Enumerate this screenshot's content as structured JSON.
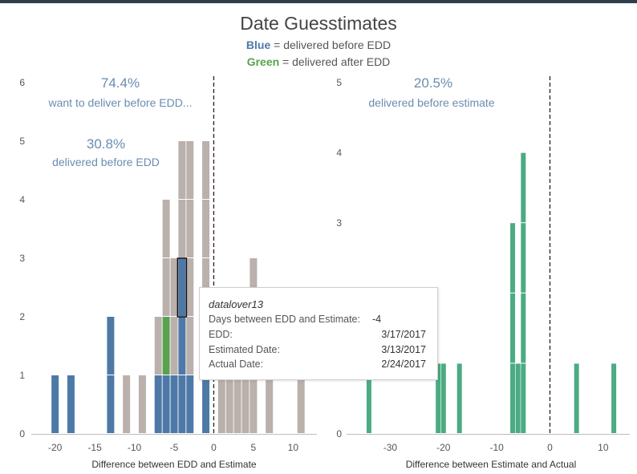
{
  "header": {
    "title": "Date Guesstimates",
    "legend_blue_word": "Blue",
    "legend_blue_rest": " = delivered before EDD",
    "legend_green_word": "Green",
    "legend_green_rest": " = delivered after EDD"
  },
  "colors": {
    "blue": "#4e79a7",
    "green": "#59a14f",
    "gray": "#bab0ac",
    "teal": "#4bab82",
    "annotation": "#6a8db0",
    "axis_text": "#555555"
  },
  "annotations": {
    "left_pct1": "74.4%",
    "left_text1": "want to deliver before EDD...",
    "left_pct2": "30.8%",
    "left_text2": "delivered before EDD",
    "right_pct": "20.5%",
    "right_text": "delivered before estimate"
  },
  "tooltip": {
    "user": "datalover13",
    "row1_label": "Days between EDD and Estimate:",
    "row1_value": "-4",
    "row2_label": "EDD:",
    "row2_value": "3/17/2017",
    "row3_label": "Estimated Date:",
    "row3_value": "3/13/2017",
    "row4_label": "Actual Date:",
    "row4_value": "2/24/2017"
  },
  "chart_data": [
    {
      "type": "bar",
      "xlabel": "Difference between EDD and Estimate",
      "ylabel": "",
      "xlim": [
        -23,
        13
      ],
      "ylim": [
        0,
        6
      ],
      "x_ticks": [
        -20,
        -15,
        -10,
        -5,
        0,
        5,
        10
      ],
      "y_ticks": [
        0,
        1,
        2,
        3,
        4,
        5,
        6
      ],
      "reference_line_x": 0,
      "unit_height": 1,
      "series": [
        {
          "name": "Blue",
          "color_key": "blue",
          "bars": [
            {
              "x": -20,
              "count": 1
            },
            {
              "x": -18,
              "count": 1
            },
            {
              "x": -13,
              "count": 2
            },
            {
              "x": -7,
              "count": 1
            },
            {
              "x": -6,
              "count": 1
            },
            {
              "x": -5,
              "count": 1
            },
            {
              "x": -4,
              "count": 3
            },
            {
              "x": -3,
              "count": 1
            },
            {
              "x": -1,
              "count": 1
            }
          ]
        },
        {
          "name": "Green",
          "color_key": "green",
          "bars": [
            {
              "x": -6,
              "count": 1
            }
          ]
        },
        {
          "name": "",
          "color_key": "gray",
          "bars": [
            {
              "x": -11,
              "count": 1
            },
            {
              "x": -9,
              "count": 1
            },
            {
              "x": -7,
              "count": 1
            },
            {
              "x": -6,
              "count": 2
            },
            {
              "x": -5,
              "count": 2
            },
            {
              "x": -4,
              "count": 2
            },
            {
              "x": -3,
              "count": 4
            },
            {
              "x": -1,
              "count": 4
            },
            {
              "x": 1,
              "count": 1
            },
            {
              "x": 2,
              "count": 1
            },
            {
              "x": 3,
              "count": 1
            },
            {
              "x": 4,
              "count": 1
            },
            {
              "x": 5,
              "count": 3
            },
            {
              "x": 7,
              "count": 1
            },
            {
              "x": 11,
              "count": 1
            }
          ]
        }
      ],
      "highlight": {
        "x": -4,
        "level": 3
      }
    },
    {
      "type": "bar",
      "xlabel": "Difference between Estimate and Actual",
      "ylabel": "",
      "xlim": [
        -37,
        15
      ],
      "ylim": [
        0,
        5
      ],
      "x_ticks": [
        -30,
        -20,
        -10,
        0,
        10
      ],
      "y_ticks": [
        0,
        1,
        2,
        3,
        4,
        5
      ],
      "reference_line_x": 0,
      "unit_height": 1,
      "series": [
        {
          "name": "",
          "color_key": "teal",
          "bars": [
            {
              "x": -34,
              "count": 1
            },
            {
              "x": -21,
              "count": 1
            },
            {
              "x": -20,
              "count": 1
            },
            {
              "x": -17,
              "count": 1
            },
            {
              "x": -7,
              "count": 3
            },
            {
              "x": -6,
              "count": 1
            },
            {
              "x": -5,
              "count": 4
            },
            {
              "x": 5,
              "count": 1
            },
            {
              "x": 12,
              "count": 1
            }
          ]
        }
      ]
    }
  ]
}
